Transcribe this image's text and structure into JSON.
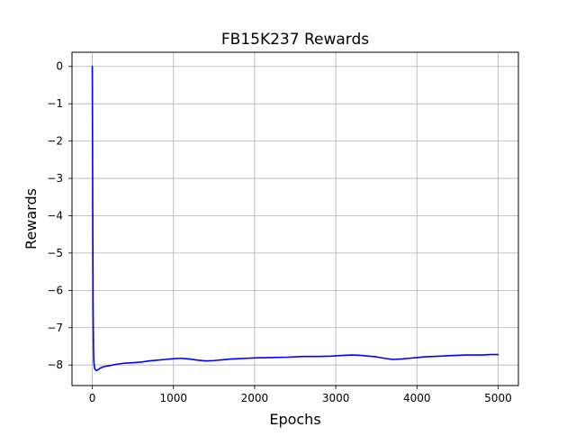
{
  "chart_data": {
    "type": "line",
    "title": "FB15K237 Rewards",
    "xlabel": "Epochs",
    "ylabel": "Rewards",
    "xlim": [
      -250,
      5250
    ],
    "ylim": [
      -8.55,
      0.38
    ],
    "x_ticks": [
      0,
      1000,
      2000,
      3000,
      4000,
      5000
    ],
    "x_tick_labels": [
      "0",
      "1000",
      "2000",
      "3000",
      "4000",
      "5000"
    ],
    "y_ticks": [
      0,
      -1,
      -2,
      -3,
      -4,
      -5,
      -6,
      -7,
      -8
    ],
    "y_tick_labels": [
      "0",
      "−1",
      "−2",
      "−3",
      "−4",
      "−5",
      "−6",
      "−7",
      "−8"
    ],
    "grid": true,
    "series": [
      {
        "color": "#0000ff",
        "points": [
          [
            0,
            0.0
          ],
          [
            5,
            -3.5
          ],
          [
            10,
            -6.5
          ],
          [
            15,
            -7.6
          ],
          [
            20,
            -7.95
          ],
          [
            30,
            -8.1
          ],
          [
            50,
            -8.15
          ],
          [
            75,
            -8.12
          ],
          [
            100,
            -8.08
          ],
          [
            150,
            -8.04
          ],
          [
            200,
            -8.02
          ],
          [
            300,
            -7.98
          ],
          [
            400,
            -7.95
          ],
          [
            500,
            -7.94
          ],
          [
            600,
            -7.92
          ],
          [
            700,
            -7.89
          ],
          [
            800,
            -7.87
          ],
          [
            900,
            -7.85
          ],
          [
            1000,
            -7.83
          ],
          [
            1100,
            -7.82
          ],
          [
            1200,
            -7.84
          ],
          [
            1300,
            -7.87
          ],
          [
            1400,
            -7.89
          ],
          [
            1500,
            -7.88
          ],
          [
            1600,
            -7.86
          ],
          [
            1700,
            -7.84
          ],
          [
            1800,
            -7.83
          ],
          [
            1900,
            -7.82
          ],
          [
            2000,
            -7.81
          ],
          [
            2200,
            -7.8
          ],
          [
            2400,
            -7.79
          ],
          [
            2600,
            -7.77
          ],
          [
            2800,
            -7.77
          ],
          [
            2950,
            -7.76
          ],
          [
            3100,
            -7.74
          ],
          [
            3200,
            -7.73
          ],
          [
            3300,
            -7.74
          ],
          [
            3400,
            -7.76
          ],
          [
            3500,
            -7.78
          ],
          [
            3600,
            -7.82
          ],
          [
            3700,
            -7.85
          ],
          [
            3800,
            -7.84
          ],
          [
            3900,
            -7.82
          ],
          [
            4000,
            -7.8
          ],
          [
            4100,
            -7.78
          ],
          [
            4200,
            -7.77
          ],
          [
            4300,
            -7.76
          ],
          [
            4400,
            -7.75
          ],
          [
            4500,
            -7.74
          ],
          [
            4600,
            -7.73
          ],
          [
            4700,
            -7.73
          ],
          [
            4800,
            -7.73
          ],
          [
            4900,
            -7.72
          ],
          [
            5000,
            -7.72
          ]
        ]
      }
    ]
  }
}
